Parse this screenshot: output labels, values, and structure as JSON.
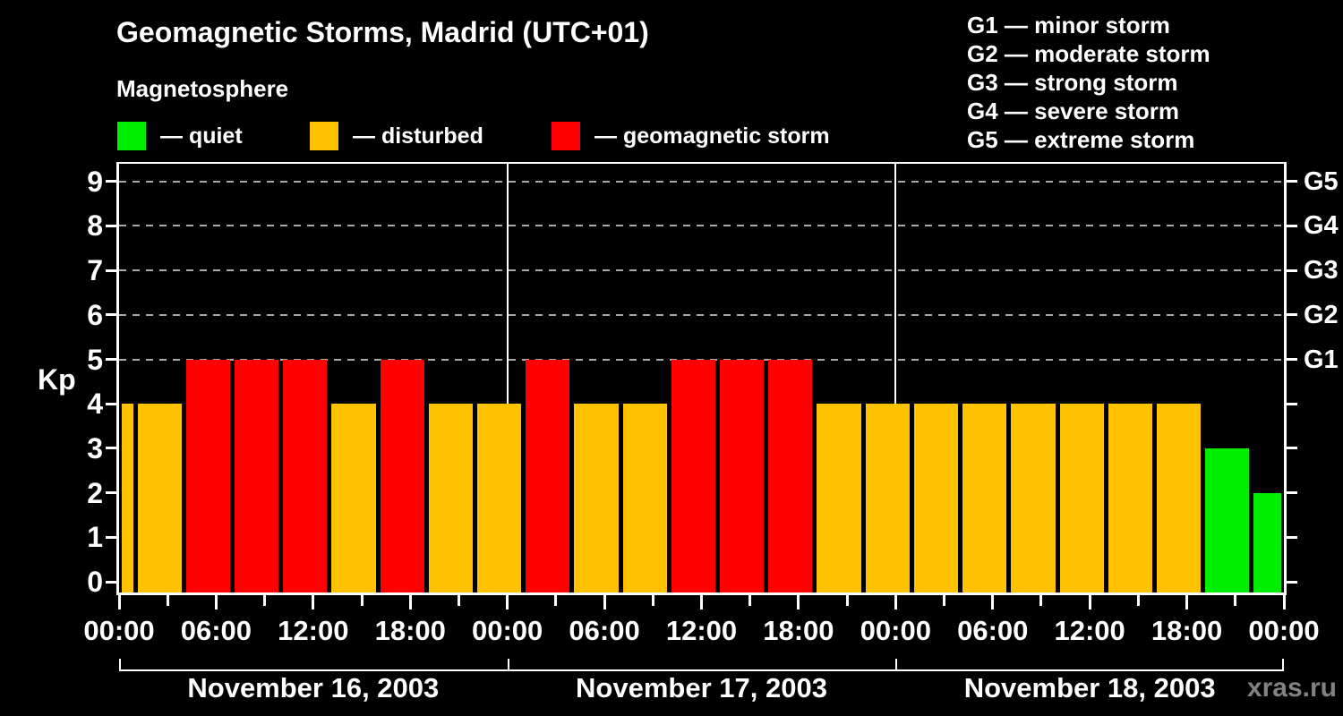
{
  "title": "Geomagnetic Storms, Madrid (UTC+01)",
  "subtitle": "Magnetosphere",
  "watermark": "xras.ru",
  "colors": {
    "quiet": "#00ee00",
    "disturbed": "#ffc200",
    "storm": "#ff0000",
    "axis": "#ffffff",
    "grid": "#a8a8a8",
    "watermark": "#828282"
  },
  "legend": {
    "items": [
      {
        "state": "quiet",
        "label": "— quiet"
      },
      {
        "state": "disturbed",
        "label": "— disturbed"
      },
      {
        "state": "storm",
        "label": "— geomagnetic storm"
      }
    ]
  },
  "g_legend": {
    "lines": [
      "G1 — minor storm",
      "G2 — moderate storm",
      "G3 — strong storm",
      "G4 — severe storm",
      "G5 — extreme storm"
    ]
  },
  "y_axis": {
    "label": "Kp",
    "tick_values": [
      0,
      1,
      2,
      3,
      4,
      5,
      6,
      7,
      8,
      9
    ]
  },
  "right_axis": {
    "tick_values": [
      0,
      1,
      2,
      3,
      4,
      5,
      6,
      7,
      8,
      9
    ],
    "labels": [
      {
        "value": 5,
        "text": "G1"
      },
      {
        "value": 6,
        "text": "G2"
      },
      {
        "value": 7,
        "text": "G3"
      },
      {
        "value": 8,
        "text": "G4"
      },
      {
        "value": 9,
        "text": "G5"
      }
    ]
  },
  "x_axis": {
    "total_hours": 72,
    "major_ticks": [
      {
        "hour": 0,
        "label": "00:00"
      },
      {
        "hour": 6,
        "label": "06:00"
      },
      {
        "hour": 12,
        "label": "12:00"
      },
      {
        "hour": 18,
        "label": "18:00"
      },
      {
        "hour": 24,
        "label": "00:00"
      },
      {
        "hour": 30,
        "label": "06:00"
      },
      {
        "hour": 36,
        "label": "12:00"
      },
      {
        "hour": 42,
        "label": "18:00"
      },
      {
        "hour": 48,
        "label": "00:00"
      },
      {
        "hour": 54,
        "label": "06:00"
      },
      {
        "hour": 60,
        "label": "12:00"
      },
      {
        "hour": 66,
        "label": "18:00"
      },
      {
        "hour": 72,
        "label": "00:00"
      }
    ],
    "minor_tick_hours": [
      3,
      9,
      15,
      21,
      27,
      33,
      39,
      45,
      51,
      57,
      63,
      69
    ]
  },
  "days": [
    {
      "label": "November 16, 2003",
      "start_hour": 0,
      "end_hour": 24
    },
    {
      "label": "November 17, 2003",
      "start_hour": 24,
      "end_hour": 48
    },
    {
      "label": "November 18, 2003",
      "start_hour": 48,
      "end_hour": 72
    }
  ],
  "chart_data": {
    "type": "bar",
    "title": "Geomagnetic Storms, Madrid (UTC+01)",
    "ylabel": "Kp",
    "ylim": [
      0,
      9.4
    ],
    "grid_levels": [
      5,
      6,
      7,
      8,
      9
    ],
    "bars": [
      {
        "start": 0,
        "end": 1,
        "kp": 4,
        "state": "disturbed"
      },
      {
        "start": 1,
        "end": 4,
        "kp": 4,
        "state": "disturbed"
      },
      {
        "start": 4,
        "end": 7,
        "kp": 5,
        "state": "storm"
      },
      {
        "start": 7,
        "end": 10,
        "kp": 5,
        "state": "storm"
      },
      {
        "start": 10,
        "end": 13,
        "kp": 5,
        "state": "storm"
      },
      {
        "start": 13,
        "end": 16,
        "kp": 4,
        "state": "disturbed"
      },
      {
        "start": 16,
        "end": 19,
        "kp": 5,
        "state": "storm"
      },
      {
        "start": 19,
        "end": 22,
        "kp": 4,
        "state": "disturbed"
      },
      {
        "start": 22,
        "end": 25,
        "kp": 4,
        "state": "disturbed"
      },
      {
        "start": 25,
        "end": 28,
        "kp": 5,
        "state": "storm"
      },
      {
        "start": 28,
        "end": 31,
        "kp": 4,
        "state": "disturbed"
      },
      {
        "start": 31,
        "end": 34,
        "kp": 4,
        "state": "disturbed"
      },
      {
        "start": 34,
        "end": 37,
        "kp": 5,
        "state": "storm"
      },
      {
        "start": 37,
        "end": 40,
        "kp": 5,
        "state": "storm"
      },
      {
        "start": 40,
        "end": 43,
        "kp": 5,
        "state": "storm"
      },
      {
        "start": 43,
        "end": 46,
        "kp": 4,
        "state": "disturbed"
      },
      {
        "start": 46,
        "end": 49,
        "kp": 4,
        "state": "disturbed"
      },
      {
        "start": 49,
        "end": 52,
        "kp": 4,
        "state": "disturbed"
      },
      {
        "start": 52,
        "end": 55,
        "kp": 4,
        "state": "disturbed"
      },
      {
        "start": 55,
        "end": 58,
        "kp": 4,
        "state": "disturbed"
      },
      {
        "start": 58,
        "end": 61,
        "kp": 4,
        "state": "disturbed"
      },
      {
        "start": 61,
        "end": 64,
        "kp": 4,
        "state": "disturbed"
      },
      {
        "start": 64,
        "end": 67,
        "kp": 4,
        "state": "disturbed"
      },
      {
        "start": 67,
        "end": 70,
        "kp": 3,
        "state": "quiet"
      },
      {
        "start": 70,
        "end": 72,
        "kp": 2,
        "state": "quiet"
      }
    ]
  }
}
